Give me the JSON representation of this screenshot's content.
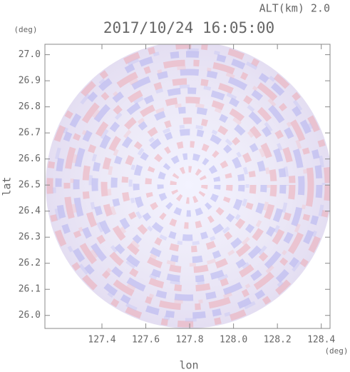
{
  "chart_data": {
    "type": "radar-ppi",
    "title": "2017/10/24 16:05:00",
    "altitude_label": "ALT(km) 2.0",
    "x_label": "lon",
    "x_unit": "(deg)",
    "y_label": "lat",
    "y_unit": "(deg)",
    "xlim": [
      127.14,
      128.44
    ],
    "xticks": [
      127.4,
      127.6,
      127.8,
      {
        "value": 128,
        "label": "128.0"
      },
      128.2,
      128.4
    ],
    "ylim": [
      25.95,
      27.04
    ],
    "yticks": [
      {
        "value": 26,
        "label": "26.0"
      },
      26.1,
      26.2,
      26.3,
      26.4,
      26.5,
      26.6,
      26.7,
      26.8,
      26.9,
      {
        "value": 27,
        "label": "27.0"
      }
    ]
  }
}
